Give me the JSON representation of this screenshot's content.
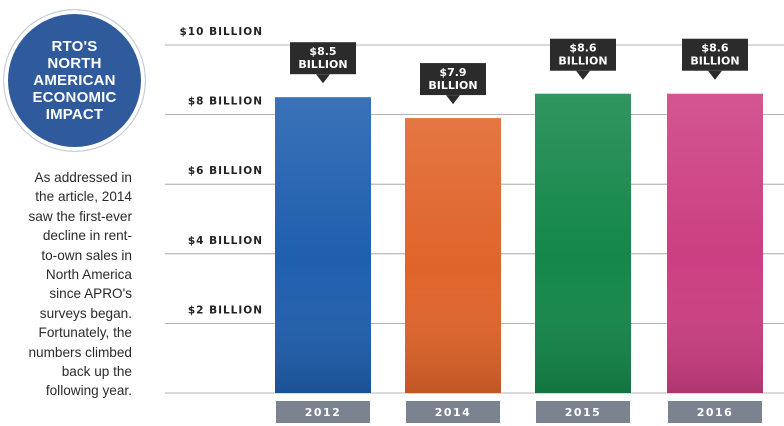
{
  "badge": {
    "title": "RTO'S\nNORTH\nAMERICAN\nECONOMIC\nIMPACT",
    "color": "#2f5a9c"
  },
  "caption": "As addressed in\nthe article, 2014\nsaw the first-ever\ndecline in rent-\nto-own sales in\nNorth America\nsince APRO's\nsurveys began.\nFortunately, the\nnumbers climbed\nback up the\nfollowing year.",
  "chart_data": {
    "type": "bar",
    "categories": [
      "2012",
      "2014",
      "2015",
      "2016"
    ],
    "values": [
      8.5,
      7.9,
      8.6,
      8.6
    ],
    "data_labels": [
      [
        "$8.5",
        "BILLION"
      ],
      [
        "$7.9",
        "BILLION"
      ],
      [
        "$8.6",
        "BILLION"
      ],
      [
        "$8.6",
        "BILLION"
      ]
    ],
    "unit": "billion USD",
    "ylim": [
      0,
      10
    ],
    "y_ticks": [
      {
        "value": 2,
        "label": "$2 BILLION"
      },
      {
        "value": 4,
        "label": "$4 BILLION"
      },
      {
        "value": 6,
        "label": "$6 BILLION"
      },
      {
        "value": 8,
        "label": "$8 BILLION"
      },
      {
        "value": 10,
        "label": "$10 BILLION"
      }
    ],
    "grid": true,
    "bar_colors": [
      "#1f5fae",
      "#e0642a",
      "#14874a",
      "#cc3f82"
    ],
    "category_label_color": "#7b8391",
    "callout_color": "#2b2b2b"
  }
}
